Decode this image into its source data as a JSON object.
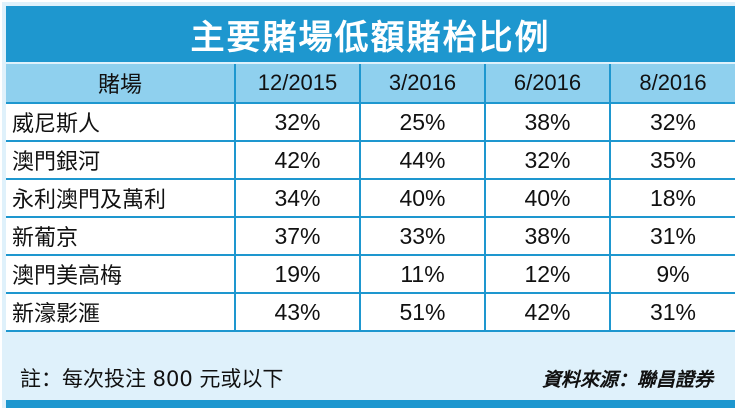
{
  "title": "主要賭場低額賭枱比例",
  "table": {
    "headers": [
      "賭場",
      "12/2015",
      "3/2016",
      "6/2016",
      "8/2016"
    ],
    "rows": [
      {
        "casino": "威尼斯人",
        "values": [
          "32%",
          "25%",
          "38%",
          "32%"
        ]
      },
      {
        "casino": "澳門銀河",
        "values": [
          "42%",
          "44%",
          "32%",
          "35%"
        ]
      },
      {
        "casino": "永利澳門及萬利",
        "values": [
          "34%",
          "40%",
          "40%",
          "18%"
        ]
      },
      {
        "casino": "新葡京",
        "values": [
          "37%",
          "33%",
          "38%",
          "31%"
        ]
      },
      {
        "casino": "澳門美高梅",
        "values": [
          "19%",
          "11%",
          "12%",
          "9%"
        ]
      },
      {
        "casino": "新濠影滙",
        "values": [
          "43%",
          "51%",
          "42%",
          "31%"
        ]
      }
    ]
  },
  "footer": {
    "note": "註：每次投注 800 元或以下",
    "source": "資料來源：聯昌證券"
  },
  "colors": {
    "accent": "#1e97cf",
    "header_bg": "#8fd0ee",
    "panel_bg": "#dff1fb"
  }
}
